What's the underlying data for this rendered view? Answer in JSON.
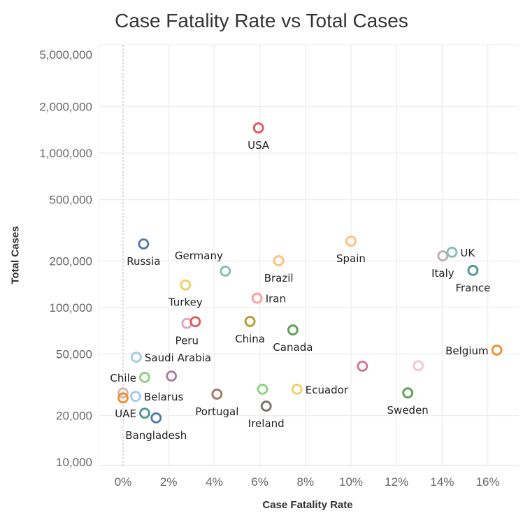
{
  "chart_data": {
    "type": "scatter",
    "title": "Case Fatality Rate vs Total Cases",
    "xlabel": "Case Fatality Rate",
    "ylabel": "Total Cases",
    "xlim": [
      -1.0,
      17.3
    ],
    "ylim": [
      8000,
      5500000
    ],
    "yscale": "log",
    "grid": true,
    "x_ticks": [
      0,
      2,
      4,
      6,
      8,
      10,
      12,
      14,
      16
    ],
    "x_tick_labels": [
      "0%",
      "2%",
      "4%",
      "6%",
      "8%",
      "10%",
      "12%",
      "14%",
      "16%"
    ],
    "y_ticks": [
      10000,
      20000,
      50000,
      100000,
      200000,
      500000,
      1000000,
      2000000,
      5000000
    ],
    "y_tick_labels": [
      "10,000",
      "20,000",
      "50,000",
      "100,000",
      "200,000",
      "500,000",
      "1,000,000",
      "2,000,000",
      "5,000,000"
    ],
    "points": [
      {
        "label": "USA",
        "x": 5.94,
        "y": 1455000,
        "color": "#e15759",
        "pos": "below"
      },
      {
        "label": "Russia",
        "x": 0.9,
        "y": 258000,
        "color": "#4e79a7",
        "pos": "below"
      },
      {
        "label": "Germany",
        "x": 4.49,
        "y": 172000,
        "color": "#86bcb6",
        "pos": "above-left"
      },
      {
        "label": "Brazil",
        "x": 6.83,
        "y": 201000,
        "color": "#ffbe7d",
        "pos": "below"
      },
      {
        "label": "Spain",
        "x": 10.0,
        "y": 269000,
        "color": "#ffbe7d",
        "pos": "below"
      },
      {
        "label": "Italy",
        "x": 14.03,
        "y": 216000,
        "color": "#bab0ac",
        "pos": "below"
      },
      {
        "label": "UK",
        "x": 14.43,
        "y": 228000,
        "color": "#86bcb6",
        "pos": "right"
      },
      {
        "label": "France",
        "x": 15.35,
        "y": 174000,
        "color": "#499894",
        "pos": "below"
      },
      {
        "label": "Turkey",
        "x": 2.74,
        "y": 140000,
        "color": "#f1ce63",
        "pos": "below"
      },
      {
        "label": "Iran",
        "x": 5.88,
        "y": 115000,
        "color": "#ff9d9a",
        "pos": "right"
      },
      {
        "label": "Peru",
        "x": 2.8,
        "y": 79000,
        "color": "#d4a6c8",
        "pos": "below"
      },
      {
        "label": "",
        "x": 3.17,
        "y": 81000,
        "color": "#e15759",
        "pos": "none"
      },
      {
        "label": "China",
        "x": 5.57,
        "y": 81300,
        "color": "#b6992d",
        "pos": "below"
      },
      {
        "label": "Canada",
        "x": 7.45,
        "y": 71600,
        "color": "#59a14f",
        "pos": "below"
      },
      {
        "label": "Saudi Arabia",
        "x": 0.58,
        "y": 47700,
        "color": "#a0cbe8",
        "pos": "right"
      },
      {
        "label": "Belgium",
        "x": 16.4,
        "y": 53000,
        "color": "#f28e2b",
        "pos": "left"
      },
      {
        "label": "Chile",
        "x": 0.95,
        "y": 35300,
        "color": "#8cd17d",
        "pos": "left"
      },
      {
        "label": "",
        "x": 2.12,
        "y": 36000,
        "color": "#b07aa1",
        "pos": "none"
      },
      {
        "label": "",
        "x": 10.5,
        "y": 41700,
        "color": "#d37295",
        "pos": "none"
      },
      {
        "label": "",
        "x": 12.95,
        "y": 42000,
        "color": "#fabfd2",
        "pos": "none"
      },
      {
        "label": "",
        "x": 0.0,
        "y": 28000,
        "color": "#d7b5a6",
        "pos": "none"
      },
      {
        "label": "",
        "x": 0.0,
        "y": 26000,
        "color": "#f28e2b",
        "pos": "none"
      },
      {
        "label": "Belarus",
        "x": 0.55,
        "y": 26600,
        "color": "#a0cbe8",
        "pos": "right"
      },
      {
        "label": "Portugal",
        "x": 4.12,
        "y": 27500,
        "color": "#9d7660",
        "pos": "below"
      },
      {
        "label": "",
        "x": 6.12,
        "y": 29600,
        "color": "#8cd17d",
        "pos": "none"
      },
      {
        "label": "Ecuador",
        "x": 7.63,
        "y": 29600,
        "color": "#f1ce63",
        "pos": "right"
      },
      {
        "label": "Sweden",
        "x": 12.49,
        "y": 28000,
        "color": "#59a14f",
        "pos": "below"
      },
      {
        "label": "Ireland",
        "x": 6.28,
        "y": 23000,
        "color": "#79706e",
        "pos": "below"
      },
      {
        "label": "UAE",
        "x": 0.95,
        "y": 20700,
        "color": "#499894",
        "pos": "left"
      },
      {
        "label": "Bangladesh",
        "x": 1.45,
        "y": 19300,
        "color": "#4e79a7",
        "pos": "below"
      }
    ]
  }
}
